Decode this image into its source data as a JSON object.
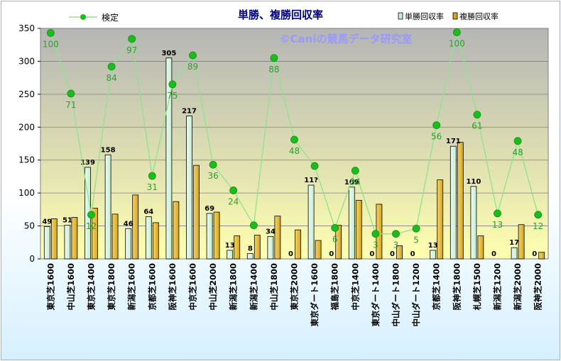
{
  "chart_data": {
    "type": "bar",
    "title": "単勝、複勝回収率",
    "watermark": "©Caniの競馬データ研究室",
    "ylim": [
      0,
      350
    ],
    "yticks": [
      0,
      50,
      100,
      150,
      200,
      250,
      300,
      350
    ],
    "legend": {
      "line": "検定",
      "bar1": "単勝回収率",
      "bar2": "複勝回収率"
    },
    "categories": [
      "東京芝1600",
      "中山芝1600",
      "東京芝1400",
      "東京芝1800",
      "新潟芝1600",
      "京都芝1600",
      "阪神芝1600",
      "中京芝1600",
      "中山芝2000",
      "新潟芝1800",
      "新潟芝1400",
      "中山芝1800",
      "東京芝2000",
      "東京ダート1600",
      "福島芝1800",
      "中京芝1400",
      "東京ダート1400",
      "中山ダート1800",
      "中山ダート1200",
      "京都芝1400",
      "阪神芝1800",
      "札幌芝1500",
      "新潟芝1200",
      "新潟芝2000",
      "阪神芝2000"
    ],
    "series": [
      {
        "name": "単勝回収率",
        "values": [
          49,
          51,
          139,
          158,
          46,
          64,
          305,
          217,
          69,
          13,
          8,
          34,
          0,
          112,
          0,
          109,
          0,
          0,
          0,
          13,
          171,
          110,
          0,
          17,
          0
        ],
        "labels": [
          "49",
          "51",
          "139",
          "158",
          "46",
          "64",
          "305",
          "217",
          "69",
          "13",
          "8",
          "34",
          "0",
          "11?",
          "0",
          "109",
          "0",
          "0",
          "0",
          "13",
          "171",
          "110",
          "0",
          "17",
          "0"
        ]
      },
      {
        "name": "複勝回収率",
        "values": [
          61,
          63,
          77,
          68,
          97,
          55,
          87,
          142,
          71,
          35,
          36,
          65,
          44,
          28,
          51,
          89,
          83,
          20,
          0,
          120,
          177,
          35,
          0,
          52,
          10
        ]
      },
      {
        "name": "検定",
        "values": [
          343,
          251,
          67,
          292,
          334,
          126,
          265,
          309,
          143,
          104,
          51,
          305,
          181,
          141,
          47,
          134,
          38,
          38,
          46,
          203,
          344,
          219,
          69,
          179,
          67
        ],
        "labels": [
          "100",
          "71",
          "12",
          "84",
          "97",
          "31",
          "75",
          "89",
          "36",
          "24",
          "",
          "88",
          "48",
          "",
          "6",
          "34",
          "3",
          "3",
          "5",
          "56",
          "100",
          "61",
          "13",
          "48",
          "12"
        ]
      }
    ],
    "colors": {
      "plot_top": "#b5b5b5",
      "plot_bottom": "#ffffb0",
      "bar1": "#c7ecd2",
      "bar2": "#d8a41a",
      "line": "#8ee38e",
      "marker": "#1bbd1b",
      "line_label": "#2f9e2f",
      "title": "#000080",
      "watermark": "#9999ff"
    }
  }
}
